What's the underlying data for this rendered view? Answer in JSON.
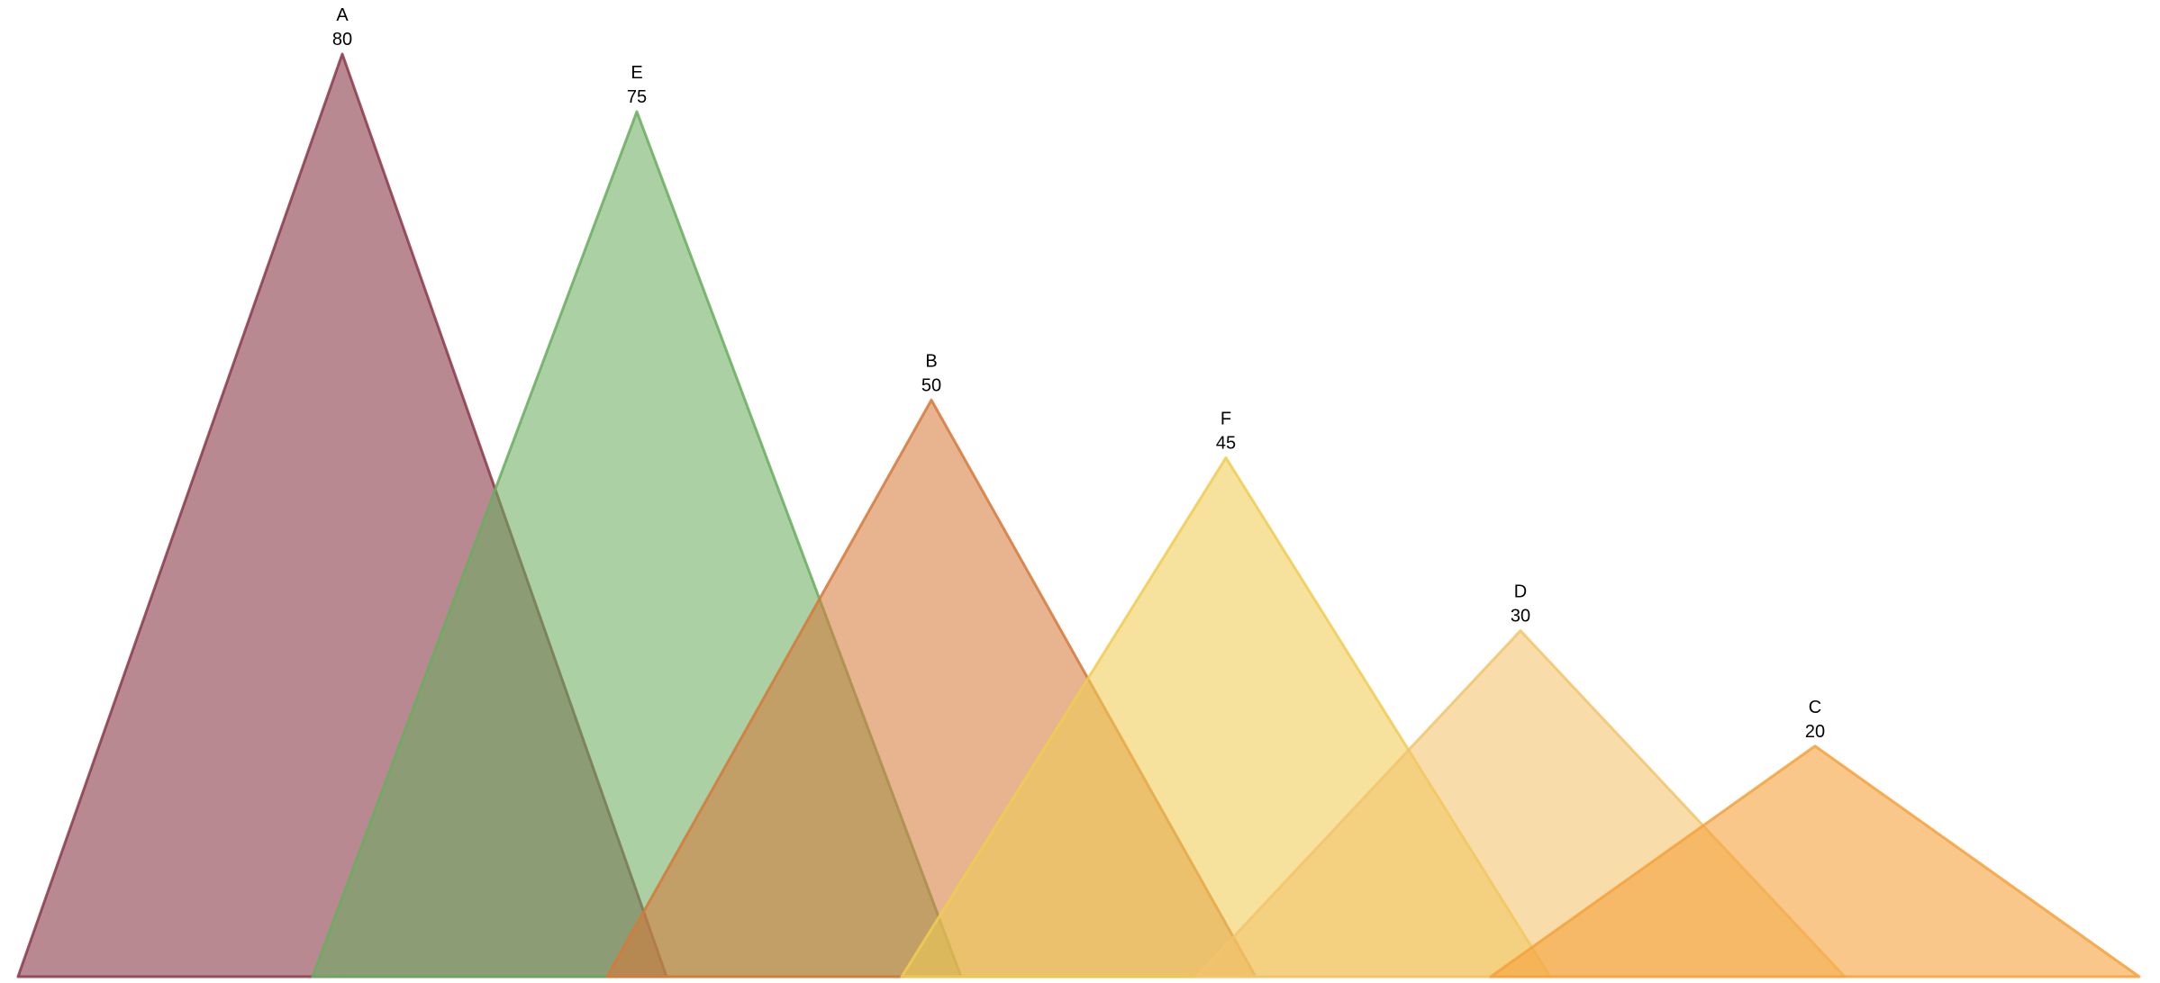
{
  "chart_data": {
    "type": "area",
    "ylim": [
      0,
      80
    ],
    "points": [
      {
        "category": "A",
        "value": 80,
        "color": "#8b3a4a",
        "fill_opacity": 0.6
      },
      {
        "category": "E",
        "value": 75,
        "color": "#6aad5f",
        "fill_opacity": 0.57
      },
      {
        "category": "B",
        "value": 50,
        "color": "#d6793a",
        "fill_opacity": 0.57
      },
      {
        "category": "F",
        "value": 45,
        "color": "#efcc52",
        "fill_opacity": 0.57
      },
      {
        "category": "D",
        "value": 30,
        "color": "#f2c46c",
        "fill_opacity": 0.57
      },
      {
        "category": "C",
        "value": 20,
        "color": "#f5a23c",
        "fill_opacity": 0.6
      }
    ],
    "grid": false,
    "legend": "none"
  }
}
